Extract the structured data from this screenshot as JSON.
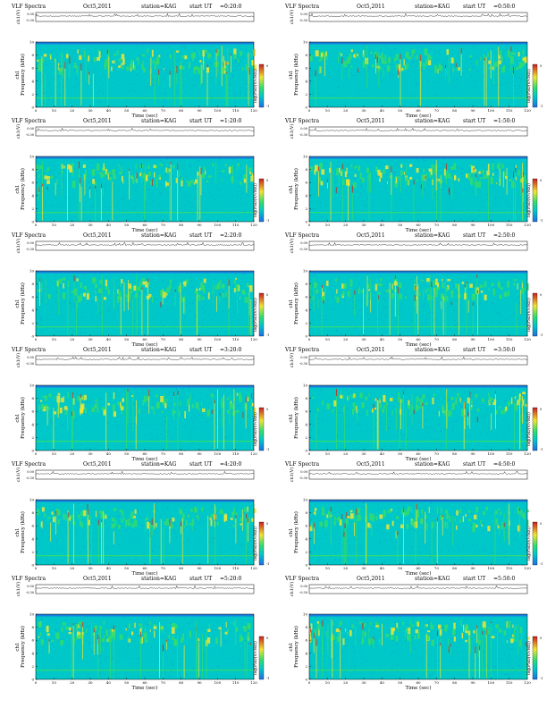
{
  "common": {
    "title": "VLF Spectra",
    "date": "Oct5,2011",
    "station": "station=KAG",
    "start_prefix": "start UT",
    "ylabel_ch": "ch1(V)",
    "ylabel_freq": "ch1\nFrequency (kHz)",
    "xlabel": "Time (sec)",
    "cbar_label": "log(PSD(V/√Hz))"
  },
  "chart_data": [
    {
      "type": "heatmap",
      "start": "=0:20:0",
      "xlim": [
        0,
        120
      ],
      "ylim": [
        0,
        10
      ],
      "xticks": [
        0,
        10,
        20,
        30,
        40,
        50,
        60,
        70,
        80,
        90,
        100,
        110,
        120
      ],
      "yticks": [
        0,
        2,
        4,
        6,
        8,
        10
      ],
      "ch_ticks": [
        "0.00",
        "-0.30"
      ],
      "cbar_ticks": [
        "0",
        "-1"
      ]
    },
    {
      "type": "heatmap",
      "start": "=0:50:0",
      "xlim": [
        0,
        120
      ],
      "ylim": [
        0,
        10
      ],
      "xticks": [
        0,
        10,
        20,
        30,
        40,
        50,
        60,
        70,
        80,
        90,
        100,
        110,
        120
      ],
      "yticks": [
        0,
        2,
        4,
        6,
        8,
        10
      ],
      "ch_ticks": [
        "0.00",
        "-0.30"
      ],
      "cbar_ticks": [
        "0",
        "-1"
      ]
    },
    {
      "type": "heatmap",
      "start": "=1:20:0",
      "xlim": [
        0,
        120
      ],
      "ylim": [
        0,
        10
      ],
      "xticks": [
        0,
        10,
        20,
        30,
        40,
        50,
        60,
        70,
        80,
        90,
        100,
        110,
        120
      ],
      "yticks": [
        0,
        2,
        4,
        6,
        8,
        10
      ],
      "ch_ticks": [
        "0.00",
        "-0.30"
      ],
      "cbar_ticks": [
        "0",
        "-1"
      ]
    },
    {
      "type": "heatmap",
      "start": "=1:50:0",
      "xlim": [
        0,
        120
      ],
      "ylim": [
        0,
        10
      ],
      "xticks": [
        0,
        10,
        20,
        30,
        40,
        50,
        60,
        70,
        80,
        90,
        100,
        110,
        120
      ],
      "yticks": [
        0,
        2,
        4,
        6,
        8,
        10
      ],
      "ch_ticks": [
        "0.00",
        "-0.30"
      ],
      "cbar_ticks": [
        "0",
        "-1"
      ]
    },
    {
      "type": "heatmap",
      "start": "=2:20:0",
      "xlim": [
        0,
        120
      ],
      "ylim": [
        0,
        10
      ],
      "xticks": [
        0,
        10,
        20,
        30,
        40,
        50,
        60,
        70,
        80,
        90,
        100,
        110,
        120
      ],
      "yticks": [
        0,
        2,
        4,
        6,
        8,
        10
      ],
      "ch_ticks": [
        "0.00",
        "-0.30"
      ],
      "cbar_ticks": [
        "0",
        "-1"
      ]
    },
    {
      "type": "heatmap",
      "start": "=2:50:0",
      "xlim": [
        0,
        120
      ],
      "ylim": [
        0,
        10
      ],
      "xticks": [
        0,
        10,
        20,
        30,
        40,
        50,
        60,
        70,
        80,
        90,
        100,
        110,
        120
      ],
      "yticks": [
        0,
        2,
        4,
        6,
        8,
        10
      ],
      "ch_ticks": [
        "0.00",
        "-0.30"
      ],
      "cbar_ticks": [
        "0",
        "-1"
      ]
    },
    {
      "type": "heatmap",
      "start": "=3:20:0",
      "xlim": [
        0,
        120
      ],
      "ylim": [
        0,
        10
      ],
      "xticks": [
        0,
        10,
        20,
        30,
        40,
        50,
        60,
        70,
        80,
        90,
        100,
        110,
        120
      ],
      "yticks": [
        0,
        2,
        4,
        6,
        8,
        10
      ],
      "ch_ticks": [
        "0.00",
        "-0.30"
      ],
      "cbar_ticks": [
        "0",
        "-1"
      ]
    },
    {
      "type": "heatmap",
      "start": "=3:50:0",
      "xlim": [
        0,
        120
      ],
      "ylim": [
        0,
        10
      ],
      "xticks": [
        0,
        10,
        20,
        30,
        40,
        50,
        60,
        70,
        80,
        90,
        100,
        110,
        120
      ],
      "yticks": [
        0,
        2,
        4,
        6,
        8,
        10
      ],
      "ch_ticks": [
        "0.00",
        "-0.30"
      ],
      "cbar_ticks": [
        "0",
        "-1"
      ]
    },
    {
      "type": "heatmap",
      "start": "=4:20:0",
      "xlim": [
        0,
        120
      ],
      "ylim": [
        0,
        10
      ],
      "xticks": [
        0,
        10,
        20,
        30,
        40,
        50,
        60,
        70,
        80,
        90,
        100,
        110,
        120
      ],
      "yticks": [
        0,
        2,
        4,
        6,
        8,
        10
      ],
      "ch_ticks": [
        "0.00",
        "-0.30"
      ],
      "cbar_ticks": [
        "0",
        "-1"
      ]
    },
    {
      "type": "heatmap",
      "start": "=4:50:0",
      "xlim": [
        0,
        120
      ],
      "ylim": [
        0,
        10
      ],
      "xticks": [
        0,
        10,
        20,
        30,
        40,
        50,
        60,
        70,
        80,
        90,
        100,
        110,
        120
      ],
      "yticks": [
        0,
        2,
        4,
        6,
        8,
        10
      ],
      "ch_ticks": [
        "0.00",
        "-0.30"
      ],
      "cbar_ticks": [
        "0",
        "-1"
      ]
    },
    {
      "type": "heatmap",
      "start": "=5:20:0",
      "xlim": [
        0,
        120
      ],
      "ylim": [
        0,
        10
      ],
      "xticks": [
        0,
        10,
        20,
        30,
        40,
        50,
        60,
        70,
        80,
        90,
        100,
        110,
        120
      ],
      "yticks": [
        0,
        2,
        4,
        6,
        8,
        10
      ],
      "ch_ticks": [
        "0.00",
        "-0.30"
      ],
      "cbar_ticks": [
        "0",
        "-1"
      ]
    },
    {
      "type": "heatmap",
      "start": "=5:50:0",
      "xlim": [
        0,
        120
      ],
      "ylim": [
        0,
        10
      ],
      "xticks": [
        0,
        10,
        20,
        30,
        40,
        50,
        60,
        70,
        80,
        90,
        100,
        110,
        120
      ],
      "yticks": [
        0,
        2,
        4,
        6,
        8,
        10
      ],
      "ch_ticks": [
        "0.00",
        "-0.30"
      ],
      "cbar_ticks": [
        "0",
        "-1"
      ]
    }
  ],
  "colors": {
    "background": "#00c8c8",
    "low": "#1e6ee6",
    "mid": "#32dc6e",
    "high": "#f0e632",
    "peak": "#c81e1e"
  }
}
